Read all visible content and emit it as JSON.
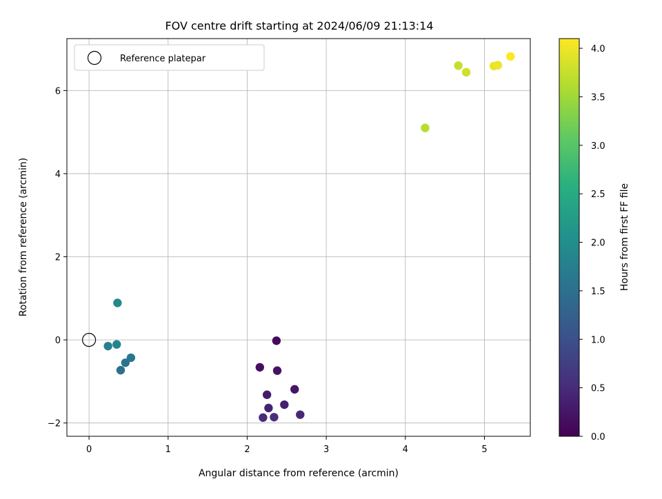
{
  "chart_data": {
    "type": "scatter",
    "title": "FOV centre drift starting at 2024/06/09 21:13:14",
    "xlabel": "Angular distance from reference (arcmin)",
    "ylabel": "Rotation from reference (arcmin)",
    "xlim": [
      -0.28,
      5.58
    ],
    "ylim": [
      -2.32,
      7.25
    ],
    "xticks": [
      0,
      1,
      2,
      3,
      4,
      5
    ],
    "yticks": [
      -2,
      0,
      2,
      4,
      6
    ],
    "grid": true,
    "legend": {
      "placement": "upper-left",
      "entries": [
        "Reference platepar"
      ]
    },
    "reference_point": {
      "x": 0,
      "y": 0
    },
    "colorbar": {
      "label": "Hours from first FF file",
      "colormap": "viridis",
      "range": [
        0.0,
        4.1
      ],
      "ticks": [
        0.0,
        0.5,
        1.0,
        1.5,
        2.0,
        2.5,
        3.0,
        3.5,
        4.0
      ],
      "tick_labels": [
        "0.0",
        "0.5",
        "1.0",
        "1.5",
        "2.0",
        "2.5",
        "3.0",
        "3.5",
        "4.0"
      ]
    },
    "points": [
      {
        "x": 2.37,
        "y": -0.02,
        "c": 0.1
      },
      {
        "x": 2.16,
        "y": -0.66,
        "c": 0.15
      },
      {
        "x": 2.38,
        "y": -0.74,
        "c": 0.2
      },
      {
        "x": 2.6,
        "y": -1.19,
        "c": 0.25
      },
      {
        "x": 2.25,
        "y": -1.32,
        "c": 0.3
      },
      {
        "x": 2.47,
        "y": -1.56,
        "c": 0.35
      },
      {
        "x": 2.27,
        "y": -1.64,
        "c": 0.4
      },
      {
        "x": 2.67,
        "y": -1.8,
        "c": 0.45
      },
      {
        "x": 2.2,
        "y": -1.87,
        "c": 0.5
      },
      {
        "x": 2.34,
        "y": -1.86,
        "c": 0.55
      },
      {
        "x": 0.4,
        "y": -0.73,
        "c": 1.5
      },
      {
        "x": 0.46,
        "y": -0.55,
        "c": 1.55
      },
      {
        "x": 0.53,
        "y": -0.43,
        "c": 1.6
      },
      {
        "x": 0.24,
        "y": -0.15,
        "c": 1.8
      },
      {
        "x": 0.35,
        "y": -0.11,
        "c": 1.85
      },
      {
        "x": 0.36,
        "y": 0.89,
        "c": 1.9
      },
      {
        "x": 4.25,
        "y": 5.1,
        "c": 3.65
      },
      {
        "x": 4.67,
        "y": 6.6,
        "c": 3.75
      },
      {
        "x": 4.77,
        "y": 6.44,
        "c": 3.8
      },
      {
        "x": 5.12,
        "y": 6.59,
        "c": 3.95
      },
      {
        "x": 5.17,
        "y": 6.61,
        "c": 4.0
      },
      {
        "x": 5.33,
        "y": 6.82,
        "c": 4.1
      }
    ]
  }
}
